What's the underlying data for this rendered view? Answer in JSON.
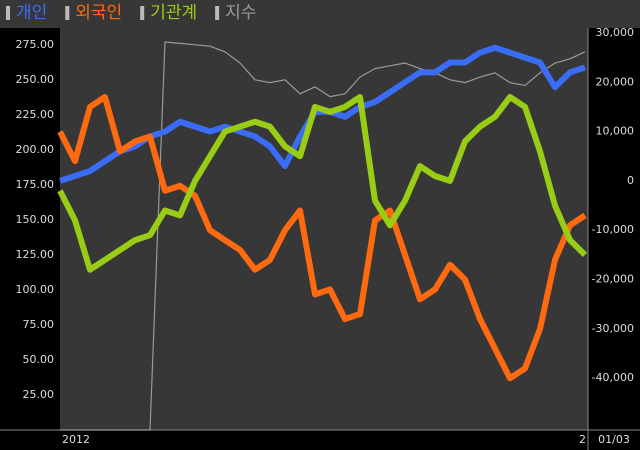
{
  "chart_data": {
    "type": "line",
    "legend": "top-left",
    "cursor_label": "01/03",
    "categories": [
      "2012",
      null,
      null,
      null,
      null,
      null,
      null,
      null,
      null,
      null,
      null,
      null,
      null,
      null,
      null,
      null,
      null,
      null,
      null,
      null,
      null,
      null,
      null,
      null,
      null,
      null,
      null,
      null,
      null,
      null,
      null,
      null,
      null,
      null,
      null,
      "2"
    ],
    "ylim": [
      0,
      287
    ],
    "yticks": [
      {
        "value": 25,
        "label": "25.00"
      },
      {
        "value": 50,
        "label": "50.00"
      },
      {
        "value": 75,
        "label": "75.00"
      },
      {
        "value": 100,
        "label": "100.00"
      },
      {
        "value": 125,
        "label": "125.00"
      },
      {
        "value": 150,
        "label": "150.00"
      },
      {
        "value": 175,
        "label": "175.00"
      },
      {
        "value": 200,
        "label": "200.00"
      },
      {
        "value": 225,
        "label": "225.00"
      },
      {
        "value": 250,
        "label": "250.00"
      },
      {
        "value": 275,
        "label": "275.00"
      }
    ],
    "y2lim": [
      -50500,
      31000
    ],
    "y2ticks": [
      {
        "value": -40000,
        "label": "-40,000"
      },
      {
        "value": -30000,
        "label": "-30,000"
      },
      {
        "value": -20000,
        "label": "-20,000"
      },
      {
        "value": -10000,
        "label": "-10,000"
      },
      0,
      {
        "value": 10000,
        "label": "10,000"
      },
      {
        "value": 20000,
        "label": "20,000"
      },
      {
        "value": 30000,
        "label": "30,000"
      }
    ],
    "series": [
      {
        "name": "개인",
        "color": "#3b6cf5",
        "axis": "y2",
        "values": [
          0,
          1000,
          2000,
          4000,
          6000,
          7000,
          9000,
          10000,
          12000,
          11000,
          10000,
          11000,
          10000,
          9000,
          7000,
          3000,
          9000,
          14000,
          14000,
          13000,
          15000,
          16000,
          18000,
          20000,
          22000,
          22000,
          24000,
          24000,
          26000,
          27000,
          26000,
          25000,
          24000,
          19000,
          22000,
          23000
        ]
      },
      {
        "name": "외국인",
        "color": "#ff6a10",
        "axis": "y2",
        "values": [
          10000,
          4000,
          15000,
          17000,
          6000,
          8000,
          9000,
          -2000,
          -1000,
          -3000,
          -10000,
          -12000,
          -14000,
          -18000,
          -16000,
          -10000,
          -6000,
          -23000,
          -22000,
          -28000,
          -27000,
          -8000,
          -6000,
          -15000,
          -24000,
          -22000,
          -17000,
          -20000,
          -28000,
          -34000,
          -40000,
          -38000,
          -30000,
          -16000,
          -9000,
          -7000
        ]
      },
      {
        "name": "기관계",
        "color": "#99cc14",
        "axis": "y2",
        "values": [
          -2000,
          -8000,
          -18000,
          -16000,
          -14000,
          -12000,
          -11000,
          -6000,
          -7000,
          0,
          5000,
          10000,
          11000,
          12000,
          11000,
          7000,
          5000,
          15000,
          14000,
          15000,
          17000,
          -4000,
          -9000,
          -4000,
          3000,
          1000,
          0,
          8000,
          11000,
          13000,
          17000,
          15000,
          6000,
          -5000,
          -12000,
          -15000
        ]
      },
      {
        "name": "지수",
        "color": "#9a9a9a",
        "values": [
          0,
          0,
          0,
          0,
          0,
          0,
          0,
          277,
          276,
          275,
          274,
          270,
          262,
          250,
          248,
          250,
          240,
          245,
          238,
          240,
          252,
          258,
          260,
          262,
          258,
          255,
          250,
          248,
          252,
          255,
          248,
          246,
          255,
          262,
          265,
          270
        ]
      }
    ]
  }
}
